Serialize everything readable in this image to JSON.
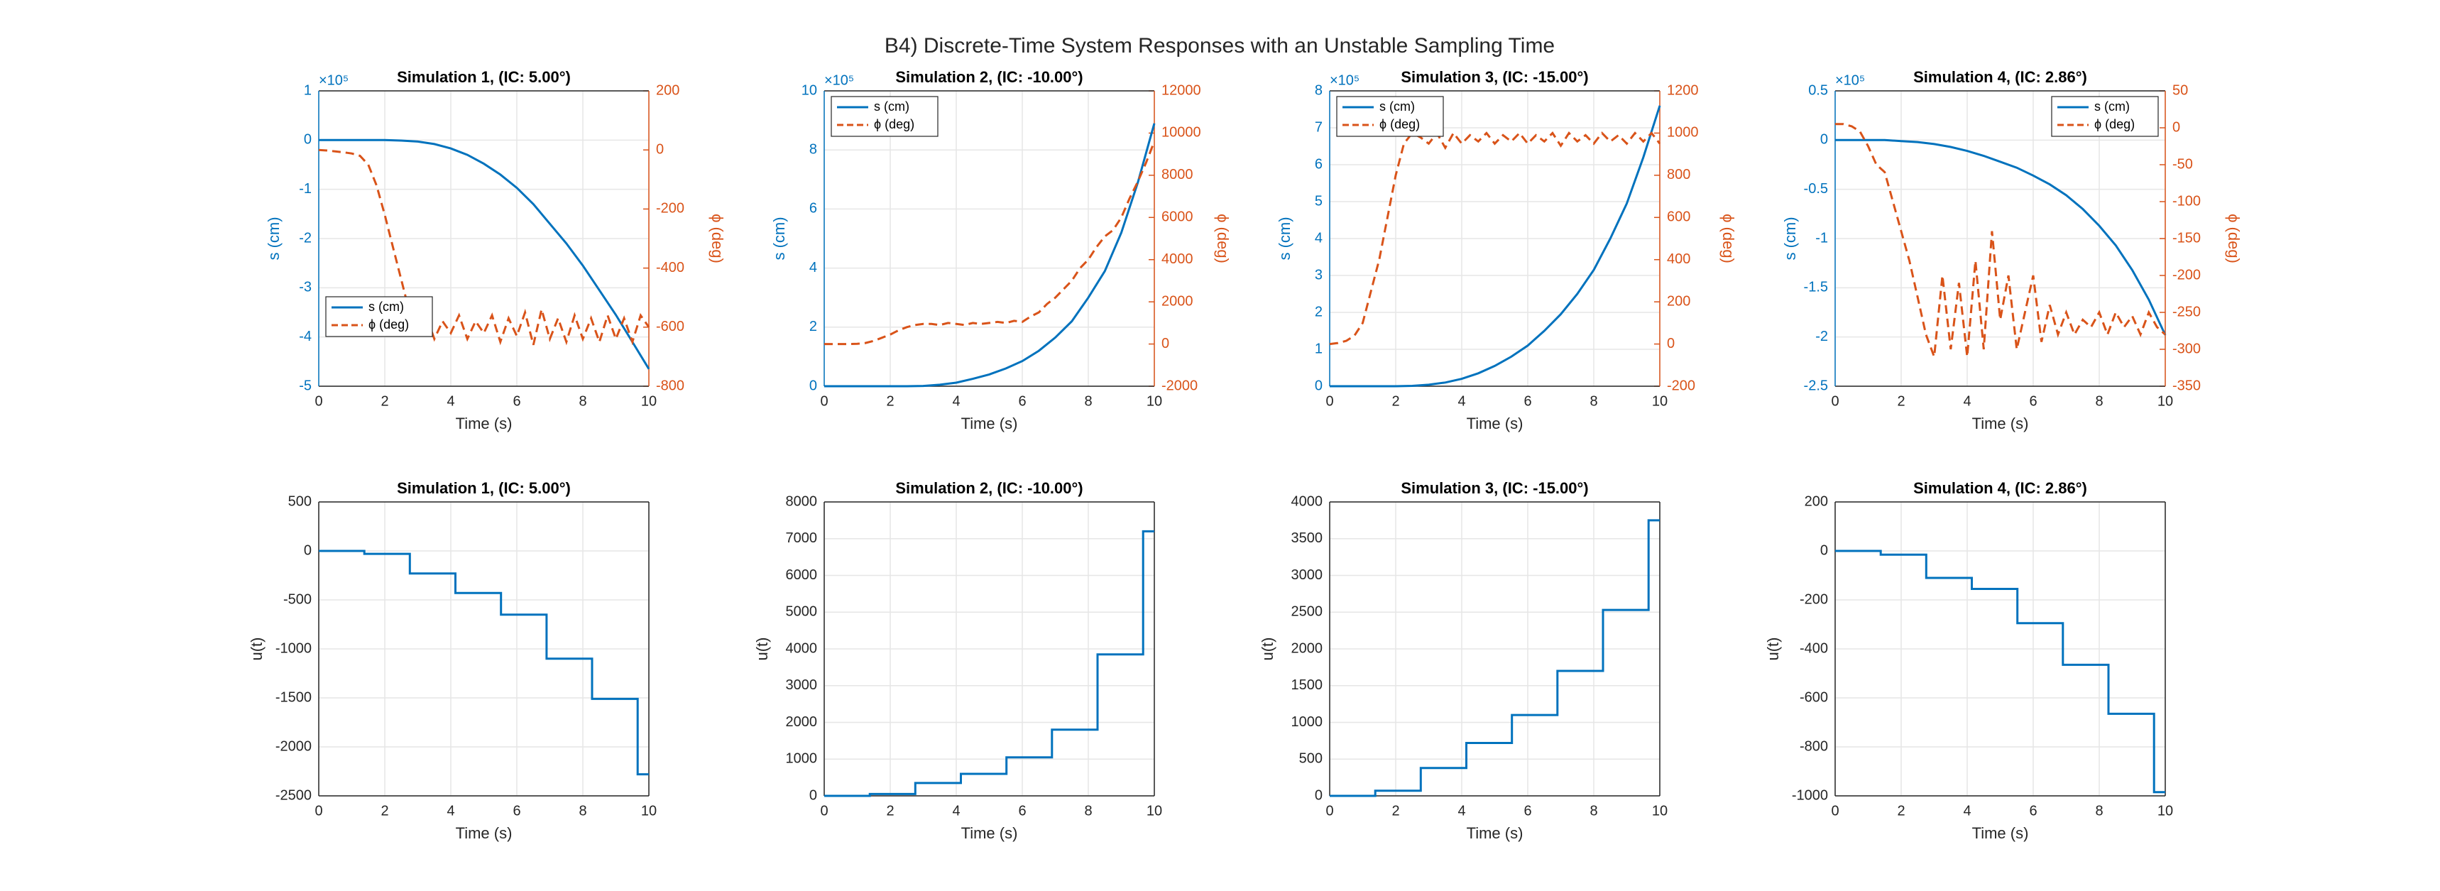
{
  "title": "B4) Discrete-Time System Responses with an Unstable Sampling Time",
  "chart_data": [
    {
      "type": "line",
      "title": "Simulation 1, (IC: 5.00°)",
      "xlabel": "Time (s)",
      "ylabel": "s (cm)",
      "y2label": "ϕ (deg)",
      "y_exponent": "×10⁵",
      "xlim": [
        0,
        10
      ],
      "xticks": [
        0,
        2,
        4,
        6,
        8,
        10
      ],
      "ylim": [
        -5,
        1
      ],
      "yticks": [
        -5,
        -4,
        -3,
        -2,
        -1,
        0,
        1
      ],
      "y2lim": [
        -800,
        200
      ],
      "y2ticks": [
        -800,
        -600,
        -400,
        -200,
        0,
        200
      ],
      "grid": true,
      "legend": "southwest",
      "series": [
        {
          "name": "s (cm)",
          "color": "#0072bd",
          "line_style": "solid",
          "x": [
            0,
            0.5,
            1,
            1.5,
            2,
            2.5,
            3,
            3.5,
            4,
            4.5,
            5,
            5.5,
            6,
            6.5,
            7,
            7.5,
            8,
            8.5,
            9,
            9.5,
            10
          ],
          "values": [
            0,
            0,
            0,
            0,
            0,
            -0.01,
            -0.03,
            -0.08,
            -0.17,
            -0.3,
            -0.48,
            -0.7,
            -0.97,
            -1.3,
            -1.7,
            -2.1,
            -2.55,
            -3.05,
            -3.55,
            -4.1,
            -4.65
          ]
        },
        {
          "name": "ϕ (deg)",
          "color": "#d95319",
          "line_style": "dashed",
          "axis": "y2",
          "x": [
            0,
            0.25,
            0.5,
            0.75,
            1,
            1.25,
            1.5,
            1.75,
            2,
            2.25,
            2.5,
            2.75,
            3,
            3.25,
            3.5,
            3.75,
            4,
            4.25,
            4.5,
            4.75,
            5,
            5.25,
            5.5,
            5.75,
            6,
            6.25,
            6.5,
            6.75,
            7,
            7.25,
            7.5,
            7.75,
            8,
            8.25,
            8.5,
            8.75,
            9,
            9.25,
            9.5,
            9.75,
            10
          ],
          "values": [
            0,
            -2,
            -5,
            -8,
            -12,
            -20,
            -50,
            -120,
            -220,
            -330,
            -440,
            -550,
            -600,
            -560,
            -640,
            -580,
            -620,
            -560,
            -640,
            -580,
            -620,
            -560,
            -650,
            -570,
            -630,
            -550,
            -660,
            -540,
            -640,
            -570,
            -650,
            -560,
            -640,
            -570,
            -650,
            -560,
            -640,
            -570,
            -650,
            -560,
            -600
          ]
        }
      ]
    },
    {
      "type": "line",
      "title": "Simulation 2, (IC: -10.00°)",
      "xlabel": "Time (s)",
      "ylabel": "s (cm)",
      "y2label": "ϕ (deg)",
      "y_exponent": "×10⁵",
      "xlim": [
        0,
        10
      ],
      "xticks": [
        0,
        2,
        4,
        6,
        8,
        10
      ],
      "ylim": [
        0,
        10
      ],
      "yticks": [
        0,
        2,
        4,
        6,
        8,
        10
      ],
      "y2lim": [
        -2000,
        12000
      ],
      "y2ticks": [
        -2000,
        0,
        2000,
        4000,
        6000,
        8000,
        10000,
        12000
      ],
      "grid": true,
      "legend": "northwest",
      "series": [
        {
          "name": "s (cm)",
          "color": "#0072bd",
          "line_style": "solid",
          "x": [
            0,
            0.5,
            1,
            1.5,
            2,
            2.5,
            3,
            3.5,
            4,
            4.5,
            5,
            5.5,
            6,
            6.5,
            7,
            7.5,
            8,
            8.5,
            9,
            9.5,
            10
          ],
          "values": [
            0,
            0,
            0,
            0,
            0,
            0,
            0.01,
            0.05,
            0.12,
            0.25,
            0.4,
            0.6,
            0.85,
            1.2,
            1.65,
            2.2,
            3,
            3.9,
            5.2,
            6.9,
            8.9
          ]
        },
        {
          "name": "ϕ (deg)",
          "color": "#d95319",
          "line_style": "dashed",
          "axis": "y2",
          "x": [
            0,
            0.25,
            0.5,
            0.75,
            1,
            1.25,
            1.5,
            1.75,
            2,
            2.25,
            2.5,
            2.75,
            3,
            3.25,
            3.5,
            3.75,
            4,
            4.25,
            4.5,
            4.75,
            5,
            5.25,
            5.5,
            5.75,
            6,
            6.25,
            6.5,
            6.75,
            7,
            7.25,
            7.5,
            7.75,
            8,
            8.25,
            8.5,
            8.75,
            9,
            9.25,
            9.5,
            9.75,
            10
          ],
          "values": [
            0,
            0,
            0,
            0,
            10,
            50,
            150,
            300,
            450,
            650,
            800,
            900,
            950,
            950,
            900,
            1000,
            950,
            900,
            1000,
            950,
            1000,
            1050,
            1000,
            1100,
            1050,
            1300,
            1500,
            1900,
            2200,
            2600,
            3000,
            3600,
            4000,
            4600,
            5100,
            5400,
            6000,
            6900,
            7700,
            8600,
            9600
          ]
        }
      ]
    },
    {
      "type": "line",
      "title": "Simulation 3, (IC: -15.00°)",
      "xlabel": "Time (s)",
      "ylabel": "s (cm)",
      "y2label": "ϕ (deg)",
      "y_exponent": "×10⁵",
      "xlim": [
        0,
        10
      ],
      "xticks": [
        0,
        2,
        4,
        6,
        8,
        10
      ],
      "ylim": [
        0,
        8
      ],
      "yticks": [
        0,
        1,
        2,
        3,
        4,
        5,
        6,
        7,
        8
      ],
      "y2lim": [
        -200,
        1200
      ],
      "y2ticks": [
        -200,
        0,
        200,
        400,
        600,
        800,
        1000,
        1200
      ],
      "grid": true,
      "legend": "northwest",
      "series": [
        {
          "name": "s (cm)",
          "color": "#0072bd",
          "line_style": "solid",
          "x": [
            0,
            0.5,
            1,
            1.5,
            2,
            2.5,
            3,
            3.5,
            4,
            4.5,
            5,
            5.5,
            6,
            6.5,
            7,
            7.5,
            8,
            8.5,
            9,
            9.5,
            10
          ],
          "values": [
            0,
            0,
            0,
            0,
            0,
            0.01,
            0.04,
            0.1,
            0.2,
            0.35,
            0.55,
            0.8,
            1.1,
            1.5,
            1.95,
            2.5,
            3.15,
            4,
            4.95,
            6.2,
            7.6
          ]
        },
        {
          "name": "ϕ (deg)",
          "color": "#d95319",
          "line_style": "dashed",
          "axis": "y2",
          "x": [
            0,
            0.25,
            0.5,
            0.75,
            1,
            1.25,
            1.5,
            1.75,
            2,
            2.25,
            2.5,
            2.75,
            3,
            3.25,
            3.5,
            3.75,
            4,
            4.25,
            4.5,
            4.75,
            5,
            5.25,
            5.5,
            5.75,
            6,
            6.25,
            6.5,
            6.75,
            7,
            7.25,
            7.5,
            7.75,
            8,
            8.25,
            8.5,
            8.75,
            9,
            9.25,
            9.5,
            9.75,
            10
          ],
          "values": [
            0,
            5,
            15,
            40,
            100,
            250,
            400,
            600,
            800,
            950,
            1000,
            980,
            950,
            1000,
            930,
            1000,
            950,
            990,
            960,
            1000,
            950,
            990,
            960,
            1000,
            950,
            990,
            960,
            1000,
            940,
            1000,
            960,
            990,
            950,
            1000,
            960,
            990,
            950,
            1000,
            960,
            1000,
            950
          ]
        }
      ]
    },
    {
      "type": "line",
      "title": "Simulation 4, (IC: 2.86°)",
      "xlabel": "Time (s)",
      "ylabel": "s (cm)",
      "y2label": "ϕ (deg)",
      "y_exponent": "×10⁵",
      "xlim": [
        0,
        10
      ],
      "xticks": [
        0,
        2,
        4,
        6,
        8,
        10
      ],
      "ylim": [
        -2.5,
        0.5
      ],
      "yticks": [
        -2.5,
        -2,
        -1.5,
        -1,
        -0.5,
        0,
        0.5
      ],
      "y2lim": [
        -350,
        50
      ],
      "y2ticks": [
        -350,
        -300,
        -250,
        -200,
        -150,
        -100,
        -50,
        0,
        50
      ],
      "grid": true,
      "legend": "northeast",
      "series": [
        {
          "name": "s (cm)",
          "color": "#0072bd",
          "line_style": "solid",
          "x": [
            0,
            0.5,
            1,
            1.5,
            2,
            2.5,
            3,
            3.5,
            4,
            4.5,
            5,
            5.5,
            6,
            6.5,
            7,
            7.5,
            8,
            8.5,
            9,
            9.5,
            10
          ],
          "values": [
            0,
            0,
            0,
            0,
            -0.01,
            -0.02,
            -0.04,
            -0.07,
            -0.11,
            -0.16,
            -0.22,
            -0.28,
            -0.36,
            -0.45,
            -0.56,
            -0.7,
            -0.87,
            -1.07,
            -1.32,
            -1.62,
            -1.98
          ]
        },
        {
          "name": "ϕ (deg)",
          "color": "#d95319",
          "line_style": "dashed",
          "axis": "y2",
          "x": [
            0,
            0.25,
            0.5,
            0.75,
            1,
            1.25,
            1.5,
            1.75,
            2,
            2.25,
            2.5,
            2.75,
            3,
            3.25,
            3.5,
            3.75,
            4,
            4.25,
            4.5,
            4.75,
            5,
            5.25,
            5.5,
            5.75,
            6,
            6.25,
            6.5,
            6.75,
            7,
            7.25,
            7.5,
            7.75,
            8,
            8.25,
            8.5,
            8.75,
            9,
            9.25,
            9.5,
            9.75,
            10
          ],
          "values": [
            5,
            5,
            2,
            -5,
            -25,
            -50,
            -60,
            -100,
            -140,
            -180,
            -230,
            -280,
            -310,
            -200,
            -300,
            -210,
            -310,
            -180,
            -300,
            -140,
            -260,
            -200,
            -300,
            -250,
            -200,
            -290,
            -240,
            -280,
            -250,
            -280,
            -260,
            -270,
            -250,
            -280,
            -250,
            -270,
            -255,
            -280,
            -250,
            -270,
            -280
          ]
        }
      ]
    },
    {
      "type": "stairs",
      "title": "Simulation 1, (IC: 5.00°)",
      "xlabel": "Time (s)",
      "ylabel": "u(t)",
      "color": "#0072bd",
      "xlim": [
        0,
        10
      ],
      "xticks": [
        0,
        2,
        4,
        6,
        8,
        10
      ],
      "ylim": [
        -2500,
        500
      ],
      "yticks": [
        -2500,
        -2000,
        -1500,
        -1000,
        -500,
        0,
        500
      ],
      "grid": true,
      "x": [
        0,
        1.38,
        2.76,
        4.14,
        5.52,
        6.9,
        8.28,
        9.66
      ],
      "values": [
        0,
        -30,
        -230,
        -430,
        -650,
        -1100,
        -1510,
        -2280
      ]
    },
    {
      "type": "stairs",
      "title": "Simulation 2, (IC: -10.00°)",
      "xlabel": "Time (s)",
      "ylabel": "u(t)",
      "color": "#0072bd",
      "xlim": [
        0,
        10
      ],
      "xticks": [
        0,
        2,
        4,
        6,
        8,
        10
      ],
      "ylim": [
        0,
        8000
      ],
      "yticks": [
        0,
        1000,
        2000,
        3000,
        4000,
        5000,
        6000,
        7000,
        8000
      ],
      "grid": true,
      "x": [
        0,
        1.38,
        2.76,
        4.14,
        5.52,
        6.9,
        8.28,
        9.66
      ],
      "values": [
        0,
        50,
        350,
        600,
        1050,
        1800,
        3850,
        7200
      ]
    },
    {
      "type": "stairs",
      "title": "Simulation 3, (IC: -15.00°)",
      "xlabel": "Time (s)",
      "ylabel": "u(t)",
      "color": "#0072bd",
      "xlim": [
        0,
        10
      ],
      "xticks": [
        0,
        2,
        4,
        6,
        8,
        10
      ],
      "ylim": [
        0,
        4000
      ],
      "yticks": [
        0,
        500,
        1000,
        1500,
        2000,
        2500,
        3000,
        3500,
        4000
      ],
      "grid": true,
      "x": [
        0,
        1.38,
        2.76,
        4.14,
        5.52,
        6.9,
        8.28,
        9.66
      ],
      "values": [
        0,
        70,
        380,
        720,
        1100,
        1700,
        2530,
        3750
      ]
    },
    {
      "type": "stairs",
      "title": "Simulation 4, (IC: 2.86°)",
      "xlabel": "Time (s)",
      "ylabel": "u(t)",
      "color": "#0072bd",
      "xlim": [
        0,
        10
      ],
      "xticks": [
        0,
        2,
        4,
        6,
        8,
        10
      ],
      "ylim": [
        -1000,
        200
      ],
      "yticks": [
        -1000,
        -800,
        -600,
        -400,
        -200,
        0,
        200
      ],
      "grid": true,
      "x": [
        0,
        1.38,
        2.76,
        4.14,
        5.52,
        6.9,
        8.28,
        9.66
      ],
      "values": [
        0,
        -15,
        -110,
        -155,
        -295,
        -465,
        -665,
        -985
      ]
    }
  ]
}
